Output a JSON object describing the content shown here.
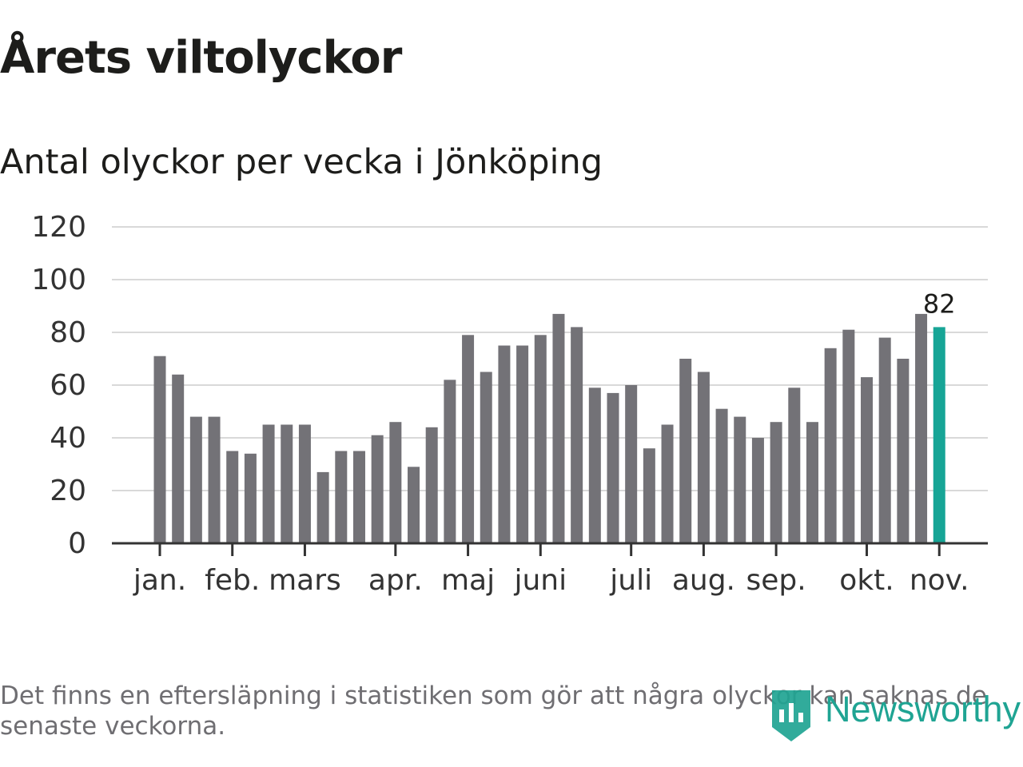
{
  "title": "Årets viltolyckor",
  "subtitle": "Antal olyckor per vecka i Jönköping",
  "footnote": "Det finns en eftersläpning i statistiken som gör att några olyckor kan saknas de senaste veckorna.",
  "logo_text": "Newsworthy",
  "colors": {
    "bar": "#737277",
    "highlight": "#17a596",
    "grid": "#d9d9d9",
    "axis": "#333333",
    "text": "#1d1d1b"
  },
  "chart_data": {
    "type": "bar",
    "ylim": [
      0,
      120
    ],
    "yticks": [
      0,
      20,
      40,
      60,
      80,
      100,
      120
    ],
    "grid": true,
    "values": [
      71,
      64,
      48,
      48,
      35,
      34,
      45,
      45,
      45,
      27,
      35,
      35,
      41,
      46,
      29,
      44,
      62,
      79,
      65,
      75,
      75,
      79,
      87,
      82,
      59,
      57,
      60,
      36,
      45,
      70,
      65,
      51,
      48,
      40,
      46,
      59,
      46,
      74,
      81,
      63,
      78,
      70,
      87,
      82
    ],
    "highlight_index": 43,
    "highlight_label": "82",
    "month_ticks": [
      {
        "label": "jan.",
        "bar_index": 0.5
      },
      {
        "label": "feb.",
        "bar_index": 4.5
      },
      {
        "label": "mars",
        "bar_index": 8.5
      },
      {
        "label": "apr.",
        "bar_index": 13.5
      },
      {
        "label": "maj",
        "bar_index": 17.5
      },
      {
        "label": "juni",
        "bar_index": 21.5
      },
      {
        "label": "juli",
        "bar_index": 26.5
      },
      {
        "label": "aug.",
        "bar_index": 30.5
      },
      {
        "label": "sep.",
        "bar_index": 34.5
      },
      {
        "label": "okt.",
        "bar_index": 39.5
      },
      {
        "label": "nov.",
        "bar_index": 43.5
      }
    ]
  }
}
